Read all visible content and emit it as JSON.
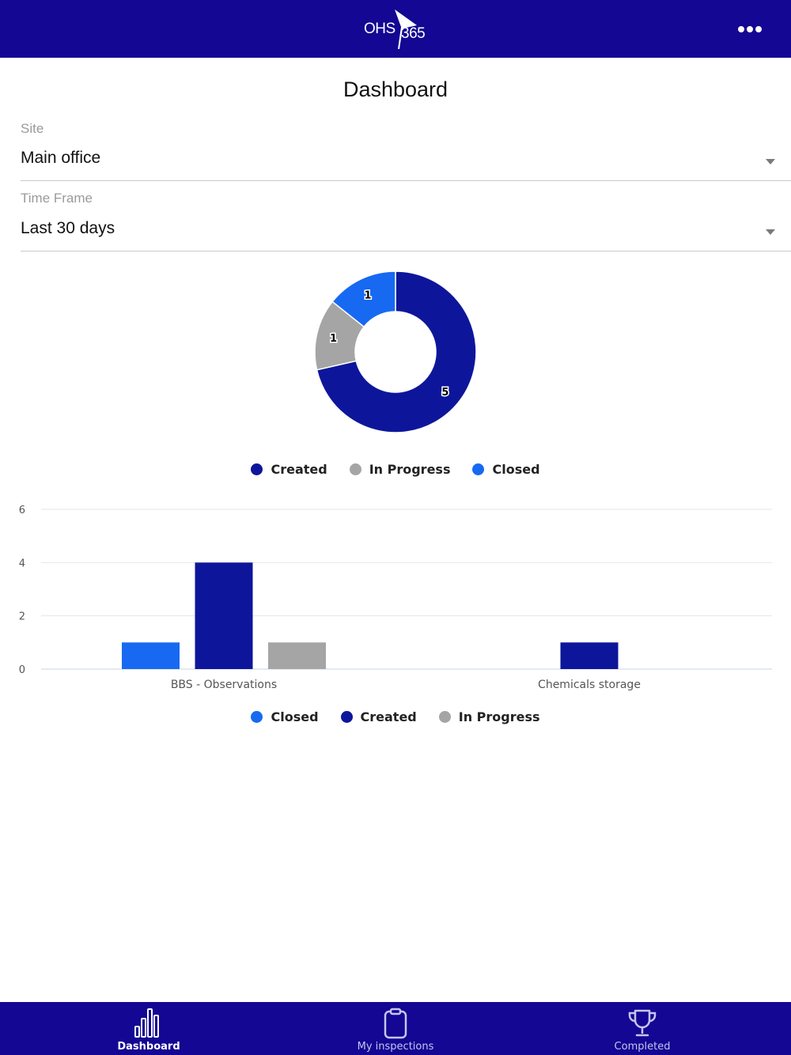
{
  "header": {
    "logo_text_left": "OHS",
    "logo_text_right": "365",
    "menu_icon": "more-horizontal-icon"
  },
  "page": {
    "title": "Dashboard"
  },
  "filters": {
    "site": {
      "label": "Site",
      "value": "Main office"
    },
    "time_frame": {
      "label": "Time Frame",
      "value": "Last 30 days"
    }
  },
  "colors": {
    "brand": "#130793",
    "created": "#0d169b",
    "in_progress": "#a5a5a5",
    "closed": "#1769f2"
  },
  "donut_legend": [
    "Created",
    "In Progress",
    "Closed"
  ],
  "bar_legend": [
    "Closed",
    "Created",
    "In Progress"
  ],
  "chart_data": [
    {
      "type": "pie",
      "variant": "donut",
      "labels": [
        "Created",
        "In Progress",
        "Closed"
      ],
      "values": [
        5,
        1,
        1
      ],
      "legend": "bottom"
    },
    {
      "type": "bar",
      "categories": [
        "BBS - Observations",
        "Chemicals storage"
      ],
      "series": [
        {
          "name": "Closed",
          "values": [
            1,
            0
          ]
        },
        {
          "name": "Created",
          "values": [
            4,
            1
          ]
        },
        {
          "name": "In Progress",
          "values": [
            1,
            0
          ]
        }
      ],
      "yticks": [
        "0",
        "2",
        "4",
        "6"
      ],
      "ylim": [
        0,
        6
      ],
      "grid": true,
      "legend": "bottom"
    }
  ],
  "tabbar": [
    {
      "label": "Dashboard",
      "icon": "bar-chart-icon",
      "active": true
    },
    {
      "label": "My inspections",
      "icon": "clipboard-icon",
      "active": false
    },
    {
      "label": "Completed",
      "icon": "trophy-icon",
      "active": false
    }
  ]
}
